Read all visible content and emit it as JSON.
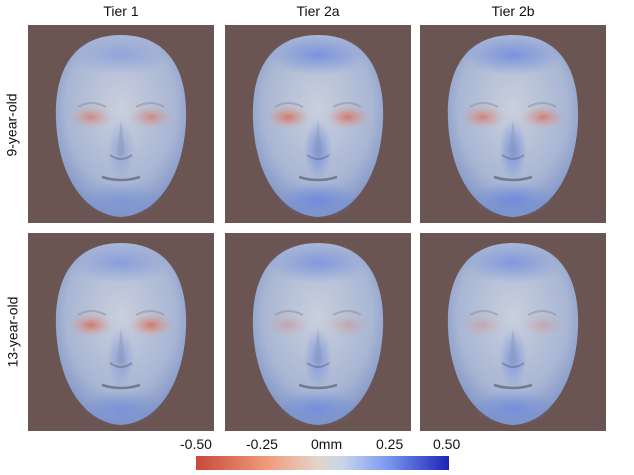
{
  "columns": [
    "Tier 1",
    "Tier 2a",
    "Tier 2b"
  ],
  "rows": [
    "9-year-old",
    "13-year-old"
  ],
  "panels": [
    {
      "row": 0,
      "col": 0,
      "red": 0.6,
      "blue": 0.4
    },
    {
      "row": 0,
      "col": 1,
      "red": 0.8,
      "blue": 0.7
    },
    {
      "row": 0,
      "col": 2,
      "red": 0.7,
      "blue": 0.7
    },
    {
      "row": 1,
      "col": 0,
      "red": 0.8,
      "blue": 0.5
    },
    {
      "row": 1,
      "col": 1,
      "red": 0.3,
      "blue": 0.6
    },
    {
      "row": 1,
      "col": 2,
      "red": 0.3,
      "blue": 0.6
    }
  ],
  "colorbar": {
    "labels": [
      "-0.50",
      "-0.25",
      "0mm",
      "0.25",
      "0.50"
    ],
    "min_color": "#c8493a",
    "max_color": "#1d23b8",
    "mid_color": "#e2d4cc"
  }
}
